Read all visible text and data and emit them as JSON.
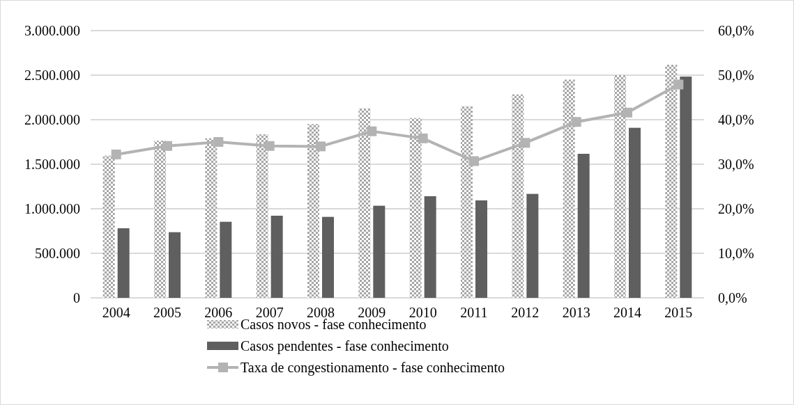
{
  "chart_data": {
    "type": "bar",
    "categories": [
      "2004",
      "2005",
      "2006",
      "2007",
      "2008",
      "2009",
      "2010",
      "2011",
      "2012",
      "2013",
      "2014",
      "2015"
    ],
    "series": [
      {
        "name": "Casos novos - fase conhecimento",
        "color": "#a6a6a6",
        "values": [
          1596000,
          1765000,
          1792000,
          1836000,
          1950000,
          2127000,
          2018000,
          2151000,
          2284000,
          2450000,
          2500000,
          2617000
        ]
      },
      {
        "name": "Casos pendentes - fase conhecimento",
        "color": "#5f5f5f",
        "values": [
          781000,
          737000,
          854000,
          922000,
          909000,
          1034000,
          1141000,
          1094000,
          1167000,
          1617000,
          1909000,
          2484000
        ]
      },
      {
        "name": "Taxa de congestionamento - fase conhecimento",
        "type": "line",
        "axis": "y2",
        "color": "#b3b3b3",
        "values": [
          32.2,
          34.1,
          35.0,
          34.1,
          34.0,
          37.4,
          35.8,
          30.7,
          34.8,
          39.5,
          41.6,
          47.9
        ]
      }
    ],
    "ylim": [
      0,
      3000000
    ],
    "yticks": [
      {
        "value": 0,
        "label": "0"
      },
      {
        "value": 500000,
        "label": "500.000"
      },
      {
        "value": 1000000,
        "label": "1.000.000"
      },
      {
        "value": 1500000,
        "label": "1.500.000"
      },
      {
        "value": 2000000,
        "label": "2.000.000"
      },
      {
        "value": 2500000,
        "label": "2.500.000"
      },
      {
        "value": 3000000,
        "label": "3.000.000"
      }
    ],
    "y2lim": [
      0,
      60
    ],
    "y2ticks": [
      {
        "value": 0,
        "label": "0,0%"
      },
      {
        "value": 10,
        "label": "10,0%"
      },
      {
        "value": 20,
        "label": "20,0%"
      },
      {
        "value": 30,
        "label": "30,0%"
      },
      {
        "value": 40,
        "label": "40,0%"
      },
      {
        "value": 50,
        "label": "50,0%"
      },
      {
        "value": 60,
        "label": "60,0%"
      }
    ],
    "grid": "y",
    "legend": "bottom",
    "marker": "square",
    "line_style": "solid"
  }
}
